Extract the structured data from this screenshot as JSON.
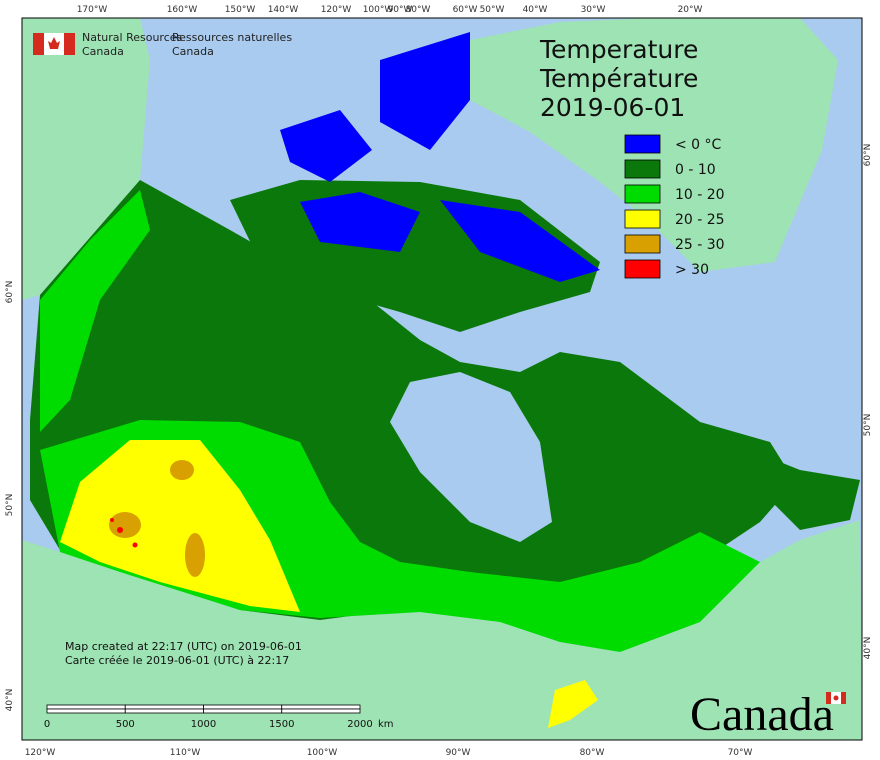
{
  "header": {
    "department_en": [
      "Natural Resources",
      "Canada"
    ],
    "department_fr": [
      "Ressources naturelles",
      "Canada"
    ]
  },
  "title": [
    "Temperature",
    "Température",
    "2019-06-01"
  ],
  "legend": [
    {
      "label": "< 0 °C",
      "color": "#0000ff"
    },
    {
      "label": "0 - 10",
      "color": "#0a780a"
    },
    {
      "label": "10 - 20",
      "color": "#00dc00"
    },
    {
      "label": "20 - 25",
      "color": "#ffff00"
    },
    {
      "label": "25 - 30",
      "color": "#d8a000"
    },
    {
      "label": "> 30",
      "color": "#ff0000"
    }
  ],
  "graticule": {
    "top": [
      "170°W",
      "160°W",
      "150°W",
      "140°W",
      "120°W",
      "100°W",
      "90°W",
      "80°W",
      "60°W",
      "50°W",
      "40°W",
      "30°W",
      "20°W"
    ],
    "bottom": [
      "120°W",
      "110°W",
      "100°W",
      "90°W",
      "80°W",
      "70°W"
    ],
    "left": [
      "60°N",
      "50°N",
      "40°N"
    ],
    "right": [
      "60°N",
      "50°N",
      "40°N"
    ]
  },
  "notes": [
    "Map created at 22:17 (UTC) on 2019-06-01",
    "Carte créée le 2019-06-01 (UTC) à 22:17"
  ],
  "scale_bar": {
    "ticks": [
      0,
      500,
      1000,
      1500,
      2000
    ],
    "unit": "km"
  },
  "wordmark": "Canada"
}
